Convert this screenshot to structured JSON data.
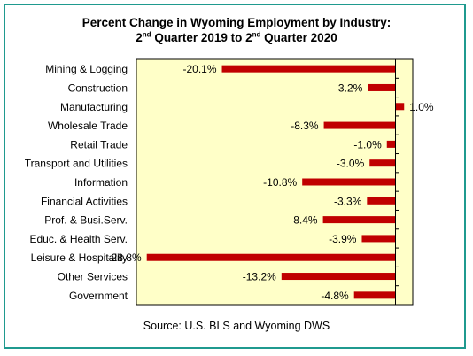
{
  "chart_data": {
    "type": "bar",
    "orientation": "horizontal",
    "title_line1": "Percent Change in Wyoming Employment by Industry:",
    "title_line2_parts": [
      "2",
      "nd",
      " Quarter 2019 to 2",
      "nd",
      " Quarter 2020"
    ],
    "categories": [
      "Mining & Logging",
      "Construction",
      "Manufacturing",
      "Wholesale Trade",
      "Retail Trade",
      "Transport and Utilities",
      "Information",
      "Financial Activities",
      "Prof. & Busi.Serv.",
      "Educ. & Health Serv.",
      "Leisure & Hospitality",
      "Other Services",
      "Government"
    ],
    "values": [
      -20.1,
      -3.2,
      1.0,
      -8.3,
      -1.0,
      -3.0,
      -10.8,
      -3.3,
      -8.4,
      -3.9,
      -28.8,
      -13.2,
      -4.8
    ],
    "value_labels": [
      "-20.1%",
      "-3.2%",
      "1.0%",
      "-8.3%",
      "-1.0%",
      "-3.0%",
      "-10.8%",
      "-3.3%",
      "-8.4%",
      "-3.9%",
      "-28.8%",
      "-13.2%",
      "-4.8%"
    ],
    "xlim": [
      -30,
      2
    ],
    "bar_color": "#c00000",
    "plot_background": "#ffffc8",
    "frame_color": "#1f9a8f",
    "grid": false,
    "legend": "none"
  },
  "source": "Source: U.S. BLS and Wyoming DWS"
}
